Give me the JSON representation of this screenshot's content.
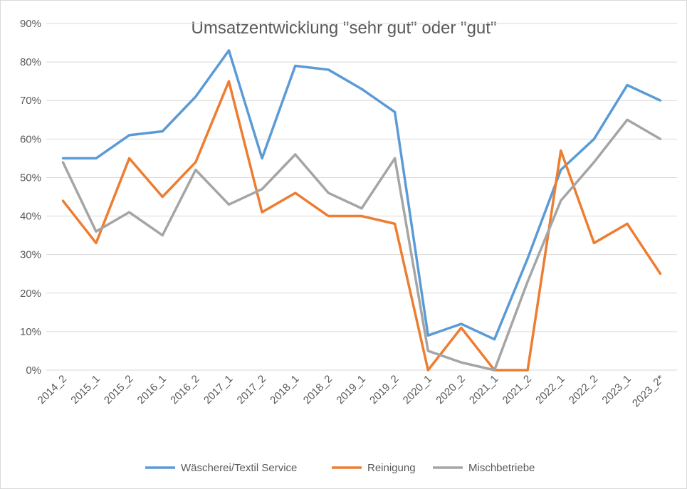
{
  "chart_data": {
    "type": "line",
    "title": "Umsatzentwicklung \"sehr gut\" oder \"gut\"",
    "xlabel": "",
    "ylabel": "",
    "ylim": [
      0,
      90
    ],
    "yticks": [
      "0%",
      "10%",
      "20%",
      "30%",
      "40%",
      "50%",
      "60%",
      "70%",
      "80%",
      "90%"
    ],
    "grid": true,
    "legend_position": "bottom",
    "categories": [
      "2014_2",
      "2015_1",
      "2015_2",
      "2016_1",
      "2016_2",
      "2017_1",
      "2017_2",
      "2018_1",
      "2018_2",
      "2019_1",
      "2019_2",
      "2020_1",
      "2020_2",
      "2021_1",
      "2021_2",
      "2022_1",
      "2022_2",
      "2023_1",
      "2023_2*"
    ],
    "series": [
      {
        "name": "Wäscherei/Textil Service",
        "color": "#5b9bd5",
        "values": [
          55,
          55,
          61,
          62,
          71,
          83,
          55,
          79,
          78,
          73,
          67,
          9,
          12,
          8,
          29,
          52,
          60,
          74,
          70
        ]
      },
      {
        "name": "Reinigung",
        "color": "#ed7d31",
        "values": [
          44,
          33,
          55,
          45,
          54,
          75,
          41,
          46,
          40,
          40,
          38,
          0,
          11,
          0,
          0,
          57,
          33,
          38,
          25
        ]
      },
      {
        "name": "Mischbetriebe",
        "color": "#a5a5a5",
        "values": [
          54,
          36,
          41,
          35,
          52,
          43,
          47,
          56,
          46,
          42,
          55,
          5,
          2,
          0,
          23,
          44,
          54,
          65,
          60
        ]
      }
    ]
  }
}
